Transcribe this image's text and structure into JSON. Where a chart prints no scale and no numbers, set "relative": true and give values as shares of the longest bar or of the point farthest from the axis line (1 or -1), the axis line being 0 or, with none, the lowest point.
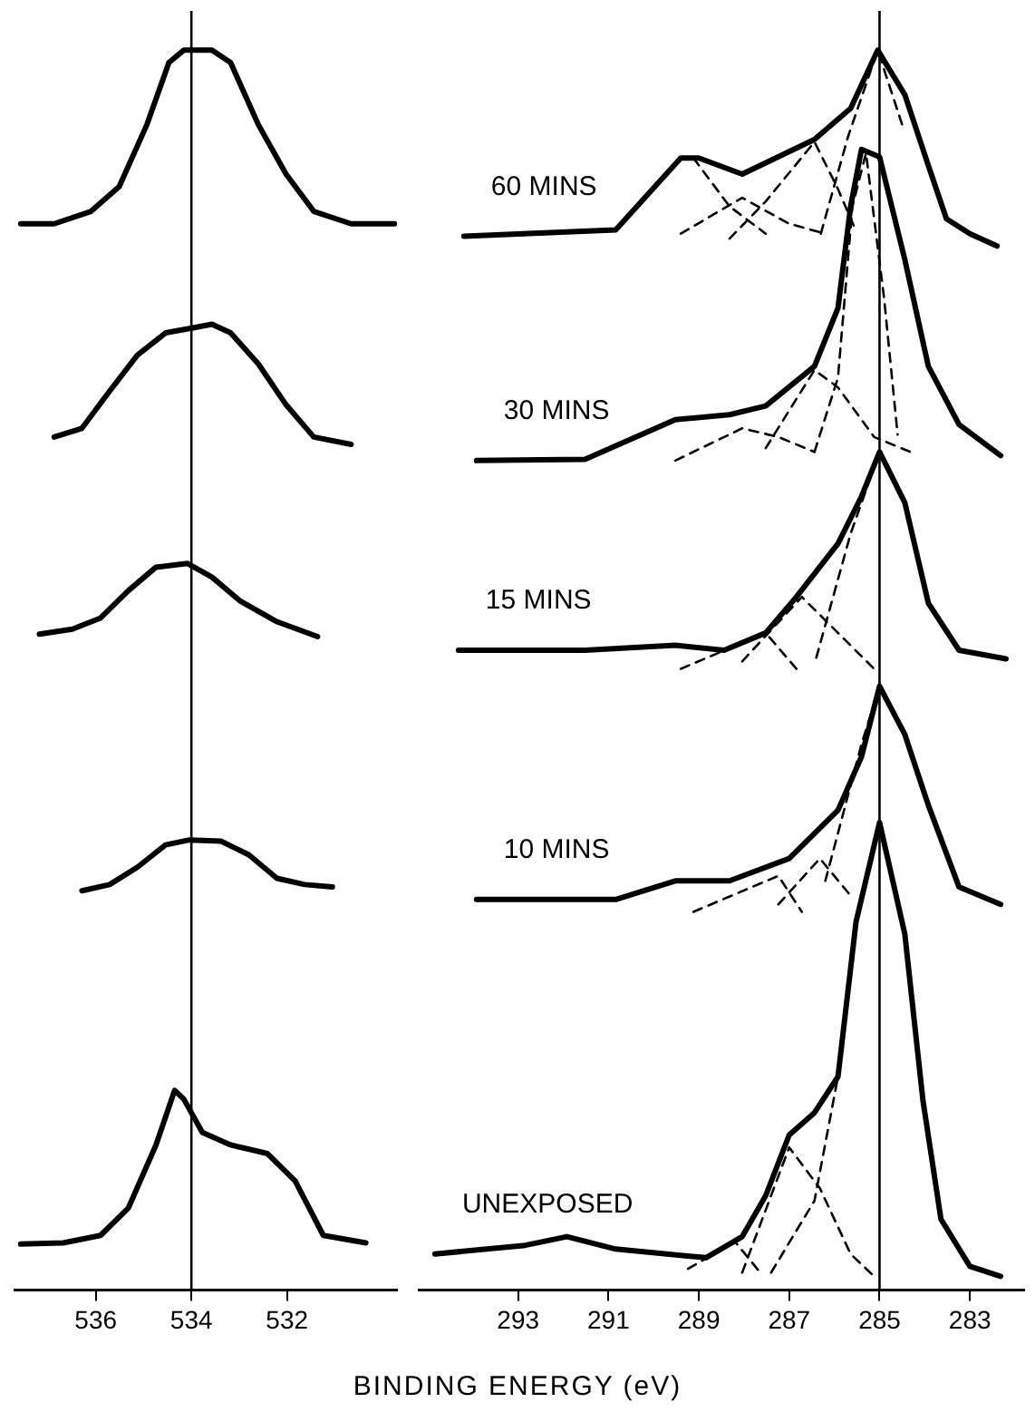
{
  "chart_data": [
    {
      "type": "line",
      "relative": true,
      "xlim": [
        537.7,
        529.7
      ],
      "xticks": [
        536,
        534,
        532
      ],
      "line_style": "solid",
      "ref_lines": [
        {
          "axis": "x",
          "value": 534
        }
      ],
      "series": [
        {
          "color": "#000000",
          "x": [
            537.57,
            536.87,
            536.1,
            535.51,
            534.93,
            534.47,
            534.16,
            533.57,
            533.18,
            532.6,
            532.02,
            531.44,
            530.66,
            529.75
          ],
          "values": [
            0.86,
            0.86,
            0.87,
            0.89,
            0.94,
            0.99,
            1,
            1,
            0.99,
            0.94,
            0.9,
            0.87,
            0.86,
            0.86
          ]
        },
        {
          "color": "#000000",
          "x": [
            536.87,
            536.29,
            535.71,
            535.13,
            534.54,
            533.96,
            533.57,
            533.18,
            532.6,
            532.02,
            531.44,
            530.66
          ],
          "values": [
            0.688,
            0.695,
            0.725,
            0.754,
            0.772,
            0.776,
            0.779,
            0.772,
            0.747,
            0.714,
            0.688,
            0.682
          ]
        },
        {
          "color": "#000000",
          "x": [
            537.18,
            536.49,
            535.9,
            535.32,
            534.74,
            534.08,
            533.57,
            532.99,
            532.21,
            531.36
          ],
          "values": [
            0.529,
            0.533,
            0.542,
            0.564,
            0.583,
            0.586,
            0.575,
            0.556,
            0.539,
            0.527
          ]
        },
        {
          "color": "#000000",
          "x": [
            536.29,
            535.71,
            535.13,
            534.54,
            534.04,
            533.38,
            532.8,
            532.21,
            531.63,
            531.05
          ],
          "values": [
            0.322,
            0.327,
            0.341,
            0.359,
            0.363,
            0.362,
            0.351,
            0.332,
            0.327,
            0.325
          ]
        },
        {
          "color": "#000000",
          "x": [
            537.57,
            536.68,
            535.9,
            535.32,
            534.74,
            534.35,
            534.16,
            533.77,
            533.18,
            532.41,
            531.83,
            531.24,
            530.35
          ],
          "values": [
            0.037,
            0.038,
            0.044,
            0.066,
            0.117,
            0.161,
            0.154,
            0.127,
            0.117,
            0.11,
            0.088,
            0.044,
            0.038
          ]
        }
      ]
    },
    {
      "type": "line",
      "relative": true,
      "xlim": [
        295.2,
        281.8
      ],
      "xticks": [
        293,
        291,
        289,
        287,
        285,
        283
      ],
      "xlabel": "BINDING ENERGY (eV)",
      "line_style": "solid",
      "ref_lines": [
        {
          "axis": "x",
          "value": 285
        }
      ],
      "series": [
        {
          "name": "60 MINS",
          "color": "#000000",
          "x": [
            294.2,
            290.84,
            289.4,
            289.0,
            288.04,
            286.44,
            285.64,
            285.04,
            284.44,
            283.92,
            283.52,
            283.0,
            282.4
          ],
          "values": [
            0.85,
            0.855,
            0.913,
            0.913,
            0.9,
            0.928,
            0.953,
            1,
            0.964,
            0.907,
            0.864,
            0.852,
            0.842
          ]
        },
        {
          "color": "#000000",
          "line_style": "dashed",
          "x": [
            286.3,
            285.7,
            285.04,
            284.5
          ],
          "values": [
            0.852,
            0.93,
            1,
            0.94
          ]
        },
        {
          "color": "#000000",
          "line_style": "dashed",
          "x": [
            288.32,
            287.52,
            286.44,
            285.92,
            285.52
          ],
          "values": [
            0.848,
            0.878,
            0.926,
            0.888,
            0.854
          ]
        },
        {
          "color": "#000000",
          "line_style": "dashed",
          "x": [
            289.4,
            288.04,
            287.0,
            286.2
          ],
          "values": [
            0.852,
            0.881,
            0.86,
            0.852
          ]
        },
        {
          "color": "#000000",
          "line_style": "dashed",
          "x": [
            289.12,
            288.32,
            287.52
          ],
          "values": [
            0.913,
            0.874,
            0.852
          ]
        },
        {
          "name": "30 MINS",
          "color": "#000000",
          "x": [
            293.92,
            291.52,
            289.52,
            288.32,
            287.52,
            286.44,
            285.92,
            285.64,
            285.4,
            285.0,
            284.44,
            283.92,
            283.24,
            282.32
          ],
          "values": [
            0.669,
            0.67,
            0.702,
            0.706,
            0.713,
            0.745,
            0.792,
            0.874,
            0.92,
            0.914,
            0.831,
            0.745,
            0.698,
            0.673
          ]
        },
        {
          "color": "#000000",
          "line_style": "dashed",
          "x": [
            286.44,
            285.92,
            285.6,
            285.3,
            284.9,
            284.6
          ],
          "values": [
            0.676,
            0.736,
            0.874,
            0.917,
            0.8,
            0.69
          ]
        },
        {
          "color": "#000000",
          "line_style": "dashed",
          "x": [
            287.52,
            286.44,
            285.92,
            285.12,
            284.32
          ],
          "values": [
            0.679,
            0.742,
            0.728,
            0.688,
            0.676
          ]
        },
        {
          "color": "#000000",
          "line_style": "dashed",
          "x": [
            289.52,
            288.04,
            287.24,
            286.44
          ],
          "values": [
            0.669,
            0.695,
            0.688,
            0.676
          ]
        },
        {
          "name": "15 MINS",
          "color": "#000000",
          "x": [
            294.32,
            291.52,
            289.52,
            288.44,
            287.52,
            286.84,
            285.92,
            285.4,
            285.0,
            284.44,
            283.92,
            283.24,
            282.2
          ],
          "values": [
            0.516,
            0.516,
            0.52,
            0.516,
            0.53,
            0.559,
            0.602,
            0.64,
            0.676,
            0.635,
            0.554,
            0.516,
            0.509
          ]
        },
        {
          "color": "#000000",
          "line_style": "dashed",
          "x": [
            286.4,
            285.64,
            285.0
          ],
          "values": [
            0.51,
            0.61,
            0.676
          ]
        },
        {
          "color": "#000000",
          "line_style": "dashed",
          "x": [
            288.04,
            286.72,
            285.92,
            285.12
          ],
          "values": [
            0.507,
            0.559,
            0.53,
            0.501
          ]
        },
        {
          "color": "#000000",
          "line_style": "dashed",
          "x": [
            289.4,
            287.52,
            286.84
          ],
          "values": [
            0.501,
            0.53,
            0.501
          ]
        },
        {
          "name": "10 MINS",
          "color": "#000000",
          "x": [
            293.92,
            290.84,
            289.52,
            288.32,
            287.0,
            285.92,
            285.4,
            285.0,
            284.44,
            283.92,
            283.24,
            282.32
          ],
          "values": [
            0.315,
            0.315,
            0.33,
            0.33,
            0.348,
            0.387,
            0.43,
            0.487,
            0.448,
            0.391,
            0.325,
            0.311
          ]
        },
        {
          "color": "#000000",
          "line_style": "dashed",
          "x": [
            286.2,
            285.4,
            285.0
          ],
          "values": [
            0.33,
            0.44,
            0.487
          ]
        },
        {
          "color": "#000000",
          "line_style": "dashed",
          "x": [
            287.24,
            286.32,
            285.64
          ],
          "values": [
            0.311,
            0.348,
            0.318
          ]
        },
        {
          "color": "#000000",
          "line_style": "dashed",
          "x": [
            289.12,
            287.24,
            286.72
          ],
          "values": [
            0.305,
            0.334,
            0.305
          ]
        },
        {
          "name": "UNEXPOSED",
          "color": "#000000",
          "x": [
            294.84,
            292.84,
            291.92,
            290.84,
            288.84,
            288.04,
            287.52,
            287.0,
            286.44,
            285.92,
            285.52,
            285.0,
            284.44,
            284.04,
            283.64,
            283.0,
            282.32
          ],
          "values": [
            0.029,
            0.036,
            0.043,
            0.033,
            0.026,
            0.043,
            0.076,
            0.125,
            0.143,
            0.172,
            0.297,
            0.377,
            0.287,
            0.153,
            0.057,
            0.019,
            0.011
          ]
        },
        {
          "color": "#000000",
          "line_style": "dashed",
          "x": [
            288.04,
            287.0,
            286.32,
            285.64,
            285.12
          ],
          "values": [
            0.014,
            0.115,
            0.082,
            0.029,
            0.011
          ]
        },
        {
          "color": "#000000",
          "line_style": "dashed",
          "x": [
            287.4,
            286.44,
            285.92
          ],
          "values": [
            0.014,
            0.072,
            0.172
          ]
        },
        {
          "color": "#000000",
          "line_style": "dashed",
          "x": [
            289.24,
            288.2,
            287.64
          ],
          "values": [
            0.017,
            0.039,
            0.014
          ]
        }
      ]
    }
  ]
}
